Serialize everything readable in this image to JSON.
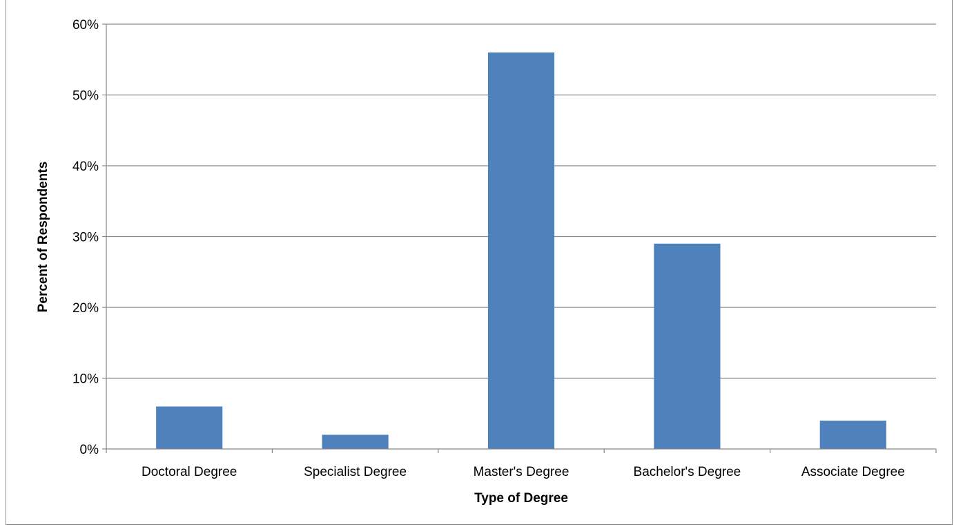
{
  "chart_data": {
    "type": "bar",
    "title": "",
    "xlabel": "Type of Degree",
    "ylabel": "Percent of Respondents",
    "categories": [
      "Doctoral Degree",
      "Specialist Degree",
      "Master's Degree",
      "Bachelor's Degree",
      "Associate Degree"
    ],
    "values": [
      6,
      2,
      56,
      29,
      4
    ],
    "value_unit": "%",
    "ylim": [
      0,
      60
    ],
    "yticks": [
      0,
      10,
      20,
      30,
      40,
      50,
      60
    ],
    "ytick_labels": [
      "0%",
      "10%",
      "20%",
      "30%",
      "40%",
      "50%",
      "60%"
    ],
    "grid": true,
    "legend": "none",
    "bar_color": "#4f81bd",
    "grid_color": "#868686"
  }
}
